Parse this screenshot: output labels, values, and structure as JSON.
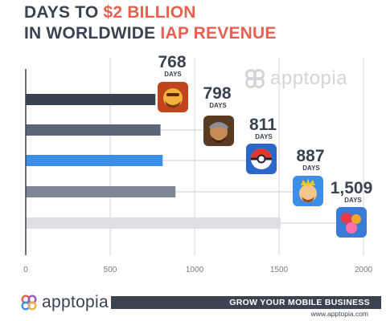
{
  "title": {
    "line1_prefix": "DAYS TO ",
    "line1_highlight": "$2 BILLION",
    "line2_prefix": "IN WORLDWIDE ",
    "line2_highlight": "IAP REVENUE"
  },
  "colors": {
    "dark": "#3b4250",
    "accent": "#e8604f",
    "bar_colors": [
      "#3a4150",
      "#5d6676",
      "#3d8ee6",
      "#7e8593",
      "#dedfe3"
    ],
    "axis": "#3b4250",
    "grid": "#d5d7db"
  },
  "chart_data": {
    "type": "bar",
    "orientation": "horizontal",
    "title": "DAYS TO $2 BILLION IN WORLDWIDE IAP REVENUE",
    "values": [
      768,
      798,
      811,
      887,
      1509
    ],
    "value_labels": [
      "768",
      "798",
      "811",
      "887",
      "1,509"
    ],
    "value_unit": "DAYS",
    "icons": [
      "clash-of-clans-icon",
      "game-of-war-icon",
      "pokemon-go-icon",
      "clash-royale-icon",
      "candy-crush-icon"
    ],
    "x_ticks": [
      "0",
      "500",
      "1000",
      "1500",
      "2000"
    ],
    "xlim": [
      0,
      2000
    ],
    "grid": true,
    "legend": "none"
  },
  "watermark": {
    "text": "apptopia"
  },
  "footer": {
    "logo_text": "apptopia",
    "tagline": "GROW YOUR MOBILE BUSINESS",
    "url": "www.apptopia.com"
  }
}
